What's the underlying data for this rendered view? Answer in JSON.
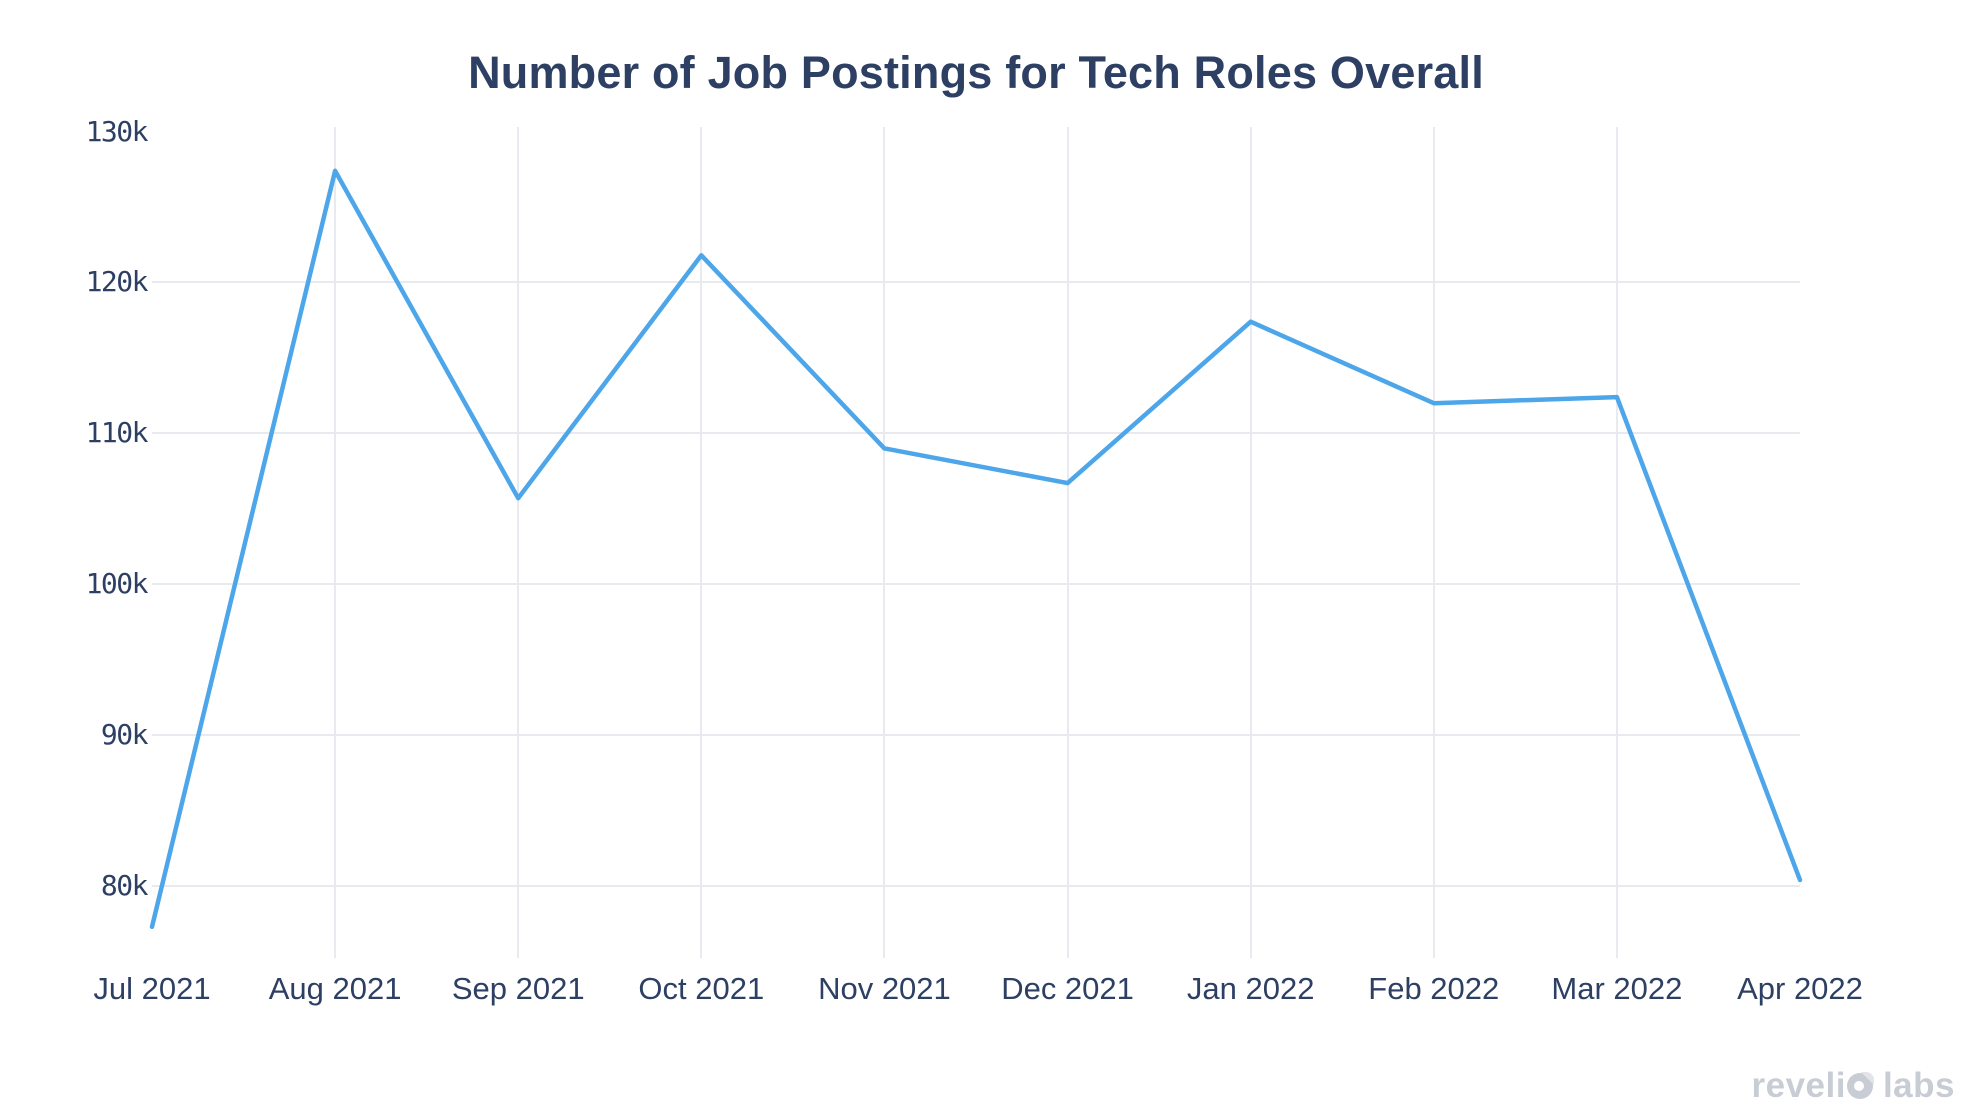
{
  "chart_data": {
    "type": "line",
    "title": "Number of Job Postings for Tech Roles Overall",
    "x": [
      "Jul 2021",
      "Aug 2021",
      "Sep 2021",
      "Oct 2021",
      "Nov 2021",
      "Dec 2021",
      "Jan 2022",
      "Feb 2022",
      "Mar 2022",
      "Apr 2022"
    ],
    "series": [
      {
        "name": "Job postings for tech roles overall",
        "values_thousands": [
          77.3,
          127.4,
          105.7,
          121.8,
          109.0,
          106.7,
          117.4,
          112.0,
          112.4,
          80.4
        ]
      }
    ],
    "yticks": [
      {
        "label": "130k",
        "value": 130,
        "gridline": false
      },
      {
        "label": "120k",
        "value": 120,
        "gridline": true
      },
      {
        "label": "110k",
        "value": 110,
        "gridline": true
      },
      {
        "label": "100k",
        "value": 100,
        "gridline": true
      },
      {
        "label": "90k",
        "value": 90,
        "gridline": true
      },
      {
        "label": "80k",
        "value": 80,
        "gridline": true
      }
    ],
    "ylim_thousands": [
      74.9,
      130.3
    ],
    "xlabel": "",
    "ylabel": "",
    "grid": "on",
    "legend": "none",
    "line_color": "#4da6ea",
    "grid_color": "#e9eaf0",
    "text_color": "#2d3f63"
  },
  "watermark": {
    "brand": "revelio labs",
    "part1": "reveli",
    "part2": "labs",
    "color": "#c8ccd4"
  }
}
